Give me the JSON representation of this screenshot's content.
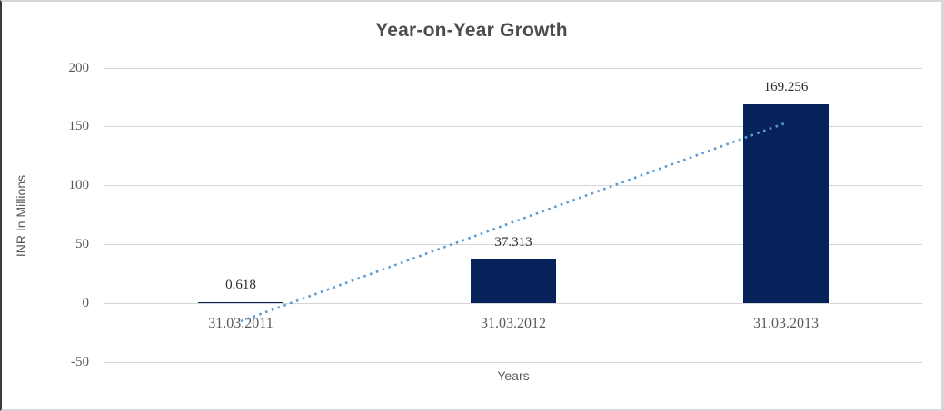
{
  "chart_data": {
    "type": "bar",
    "title": "Year-on-Year Growth",
    "xlabel": "Years",
    "ylabel": "INR In Millions",
    "categories": [
      "31.03.2011",
      "31.03.2012",
      "31.03.2013"
    ],
    "values": [
      0.618,
      37.313,
      169.256
    ],
    "data_labels": [
      "0.618",
      "37.313",
      "169.256"
    ],
    "yticks": [
      200,
      150,
      100,
      50,
      0,
      -50
    ],
    "ylim": [
      -50,
      200
    ],
    "grid": true,
    "legend": "none",
    "trendline": {
      "type": "linear",
      "style": "dotted"
    },
    "colors": {
      "bar_fill": "#07215a",
      "trendline": "#5b9bd5",
      "gridline": "#d6d6d6",
      "title_text": "#4d4d4d",
      "tick_text": "#595959",
      "data_label_text": "#2b2b2b"
    }
  }
}
